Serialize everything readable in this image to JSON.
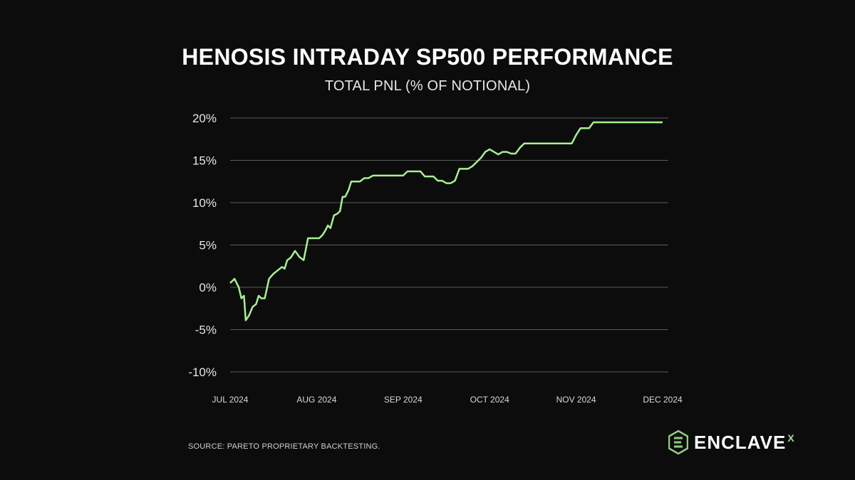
{
  "header": {
    "title": "HENOSIS INTRADAY SP500 PERFORMANCE",
    "subtitle": "TOTAL PNL (% OF NOTIONAL)"
  },
  "footer": {
    "source": "SOURCE: PARETO PROPRIETARY BACKTESTING.",
    "logo_text": "ENCLAVE",
    "logo_suffix": "X"
  },
  "colors": {
    "background": "#0c0c0c",
    "line": "#a6f08f",
    "grid": "#5a5a5a",
    "logo_accent": "#8fcf7f"
  },
  "chart_data": {
    "type": "line",
    "title": "HENOSIS INTRADAY SP500 PERFORMANCE",
    "subtitle": "TOTAL PNL (% OF NOTIONAL)",
    "xlabel": "",
    "ylabel": "",
    "ylim": [
      -10,
      20
    ],
    "y_ticks": [
      20,
      15,
      10,
      5,
      0,
      -5,
      -10
    ],
    "y_tick_labels": [
      "20%",
      "15%",
      "10%",
      "5%",
      "0%",
      "-5%",
      "-10%"
    ],
    "x_ticks": [
      "JUL 2024",
      "AUG 2024",
      "SEP 2024",
      "OCT 2024",
      "NOV 2024",
      "DEC 2024"
    ],
    "xlim_months": [
      0,
      5
    ],
    "grid": true,
    "legend": false,
    "series": [
      {
        "x": [
          0.0,
          0.05,
          0.1,
          0.13,
          0.16,
          0.18,
          0.22,
          0.26,
          0.3,
          0.33,
          0.36,
          0.4,
          0.45,
          0.5,
          0.55,
          0.6,
          0.63,
          0.66,
          0.7,
          0.75,
          0.8,
          0.85,
          0.9,
          0.95,
          1.0,
          1.03,
          1.07,
          1.1,
          1.13,
          1.16,
          1.2,
          1.24,
          1.27,
          1.3,
          1.33,
          1.37,
          1.4,
          1.43,
          1.47,
          1.5,
          1.55,
          1.6,
          1.65,
          1.7,
          1.75,
          1.8,
          1.85,
          1.9,
          1.95,
          2.0,
          2.05,
          2.1,
          2.15,
          2.2,
          2.25,
          2.3,
          2.35,
          2.4,
          2.45,
          2.5,
          2.55,
          2.6,
          2.65,
          2.7,
          2.75,
          2.8,
          2.85,
          2.9,
          2.95,
          3.0,
          3.05,
          3.1,
          3.15,
          3.2,
          3.25,
          3.3,
          3.35,
          3.4,
          3.45,
          3.5,
          3.55,
          3.6,
          3.65,
          3.7,
          3.75,
          3.8,
          3.85,
          3.9,
          3.95,
          4.0,
          4.05,
          4.1,
          4.15,
          4.2,
          4.25,
          4.3,
          4.35,
          4.4,
          4.45,
          4.5,
          4.55,
          4.6,
          4.65,
          4.7,
          4.75,
          4.8,
          4.85,
          4.9,
          4.95,
          5.0
        ],
        "values": [
          0.5,
          1.0,
          0.0,
          -1.3,
          -1.0,
          -3.9,
          -3.3,
          -2.3,
          -2.0,
          -1.0,
          -1.3,
          -1.3,
          1.0,
          1.6,
          2.0,
          2.4,
          2.2,
          3.2,
          3.5,
          4.3,
          3.6,
          3.2,
          5.8,
          5.8,
          5.8,
          5.8,
          6.2,
          6.7,
          7.3,
          7.0,
          8.5,
          8.7,
          9.0,
          10.7,
          10.7,
          11.5,
          12.5,
          12.5,
          12.5,
          12.5,
          12.9,
          12.9,
          13.2,
          13.2,
          13.2,
          13.2,
          13.2,
          13.2,
          13.2,
          13.2,
          13.7,
          13.7,
          13.7,
          13.7,
          13.1,
          13.1,
          13.1,
          12.6,
          12.6,
          12.3,
          12.3,
          12.6,
          14.0,
          14.0,
          14.0,
          14.3,
          14.8,
          15.3,
          16.0,
          16.3,
          16.0,
          15.7,
          16.0,
          16.0,
          15.8,
          15.8,
          16.5,
          17.0,
          17.0,
          17.0,
          17.0,
          17.0,
          17.0,
          17.0,
          17.0,
          17.0,
          17.0,
          17.0,
          17.0,
          18.0,
          18.8,
          18.8,
          18.8,
          19.5,
          19.5,
          19.5,
          19.5,
          19.5,
          19.5,
          19.5,
          19.5,
          19.5,
          19.5,
          19.5,
          19.5,
          19.5,
          19.5,
          19.5,
          19.5,
          19.5
        ]
      }
    ]
  }
}
